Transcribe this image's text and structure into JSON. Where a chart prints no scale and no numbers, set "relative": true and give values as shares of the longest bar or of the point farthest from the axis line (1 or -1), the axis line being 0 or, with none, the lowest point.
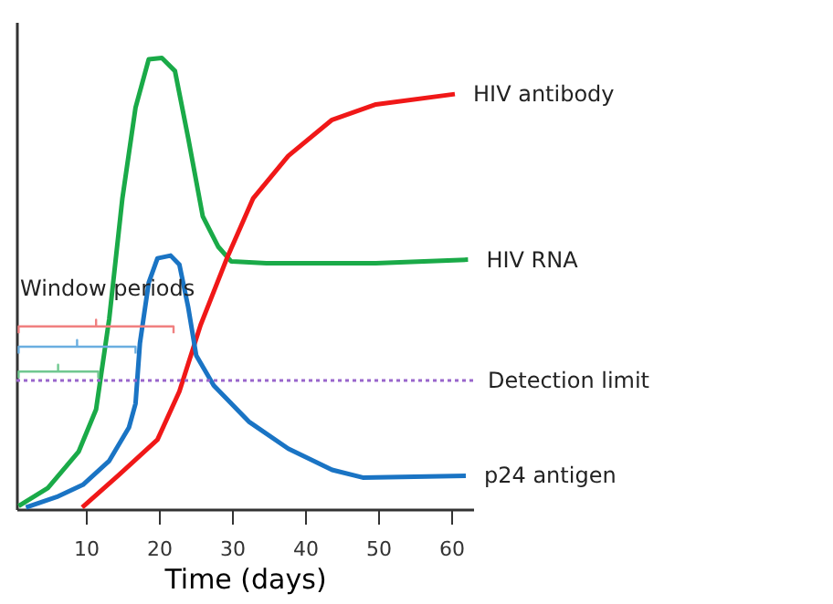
{
  "chart_data": {
    "type": "line",
    "xlabel": "Time (days)",
    "relative": true,
    "tick_labels": "x",
    "grid": false,
    "legend": false,
    "marker": "none",
    "line_style": "solid",
    "xlim": [
      0.5,
      63
    ],
    "xticks": [
      10,
      20,
      30,
      40,
      50,
      60
    ],
    "series": [
      {
        "name": "HIV RNA",
        "color": "#1aaa48",
        "x": [
          0.8,
          4.8,
          9,
          11.4,
          13.2,
          15,
          16.8,
          18.6,
          20.4,
          22.2,
          24,
          26,
          28.1,
          29.9,
          34.7,
          49.7,
          62.3
        ],
        "values": [
          0.007,
          0.047,
          0.127,
          0.221,
          0.422,
          0.689,
          0.89,
          0.997,
          1,
          0.971,
          0.823,
          0.649,
          0.582,
          0.549,
          0.545,
          0.545,
          0.553
        ]
      },
      {
        "name": "HIV antibody",
        "color": "#f01818",
        "x": [
          9.5,
          14.4,
          19.8,
          22.8,
          25.7,
          29.3,
          32.9,
          37.7,
          43.7,
          49.7,
          60.5
        ],
        "values": [
          0.004,
          0.074,
          0.154,
          0.261,
          0.408,
          0.556,
          0.689,
          0.783,
          0.863,
          0.897,
          0.92
        ]
      },
      {
        "name": "p24 antigen",
        "color": "#1a74c4",
        "x": [
          1.8,
          6,
          9.6,
          13.2,
          15.9,
          16.8,
          17.4,
          18.6,
          19.8,
          21.6,
          22.8,
          24,
          25.1,
          27.5,
          32.3,
          37.7,
          43.7,
          47.9,
          62
        ],
        "values": [
          0.004,
          0.027,
          0.054,
          0.107,
          0.181,
          0.234,
          0.368,
          0.502,
          0.556,
          0.562,
          0.542,
          0.448,
          0.341,
          0.274,
          0.194,
          0.134,
          0.087,
          0.07,
          0.074
        ]
      },
      {
        "color": "#f08080",
        "x": [
          0.8,
          0.8,
          11.4,
          11.4,
          11.4,
          22,
          22
        ],
        "values": [
          0.39,
          0.405,
          0.405,
          0.42,
          0.405,
          0.405,
          0.39
        ]
      },
      {
        "color": "#6aaee0",
        "x": [
          0.8,
          0.8,
          8.8,
          8.8,
          8.8,
          16.8,
          16.8
        ],
        "values": [
          0.345,
          0.36,
          0.36,
          0.375,
          0.36,
          0.36,
          0.345
        ]
      },
      {
        "color": "#70c890",
        "x": [
          0.8,
          0.8,
          6.2,
          6.2,
          6.2,
          11.7,
          11.7
        ],
        "values": [
          0.29,
          0.305,
          0.305,
          0.32,
          0.305,
          0.305,
          0.29
        ]
      }
    ],
    "ref_lines": [
      {
        "axis": "y",
        "value": 0.285,
        "label": "Detection limit",
        "color": "#9966cc",
        "line_style": "dotted"
      }
    ],
    "annotations": [
      "Window periods"
    ]
  }
}
